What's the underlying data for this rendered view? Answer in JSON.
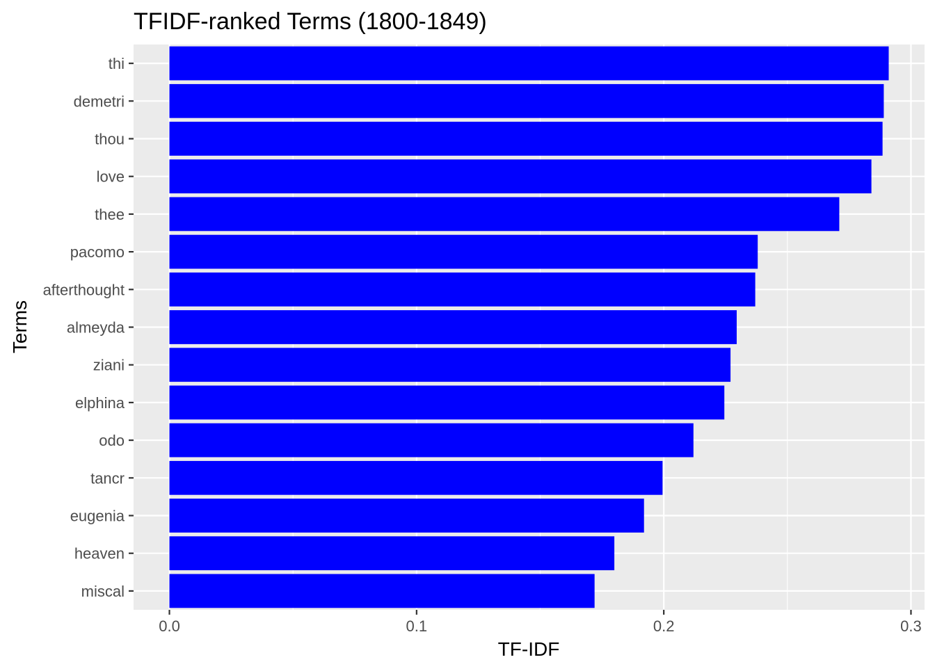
{
  "chart_data": {
    "type": "bar",
    "orientation": "horizontal",
    "title": "TFIDF-ranked Terms (1800-1849)",
    "xlabel": "TF-IDF",
    "ylabel": "Terms",
    "categories": [
      "thi",
      "demetri",
      "thou",
      "love",
      "thee",
      "pacomo",
      "afterthought",
      "almeyda",
      "ziani",
      "elphina",
      "odo",
      "tancr",
      "eugenia",
      "heaven",
      "miscal"
    ],
    "values": [
      0.291,
      0.289,
      0.2885,
      0.284,
      0.271,
      0.238,
      0.237,
      0.2295,
      0.227,
      0.2245,
      0.212,
      0.1995,
      0.192,
      0.18,
      0.172
    ],
    "xlim": [
      -0.0145,
      0.3055
    ],
    "x_ticks": [
      0.0,
      0.1,
      0.2,
      0.3
    ],
    "x_tick_labels": [
      "0.0",
      "0.1",
      "0.2",
      "0.3"
    ],
    "bar_color": "#0000ff",
    "panel_background": "#ebebeb",
    "grid_color": "#ffffff",
    "grid": true,
    "legend": "none"
  }
}
